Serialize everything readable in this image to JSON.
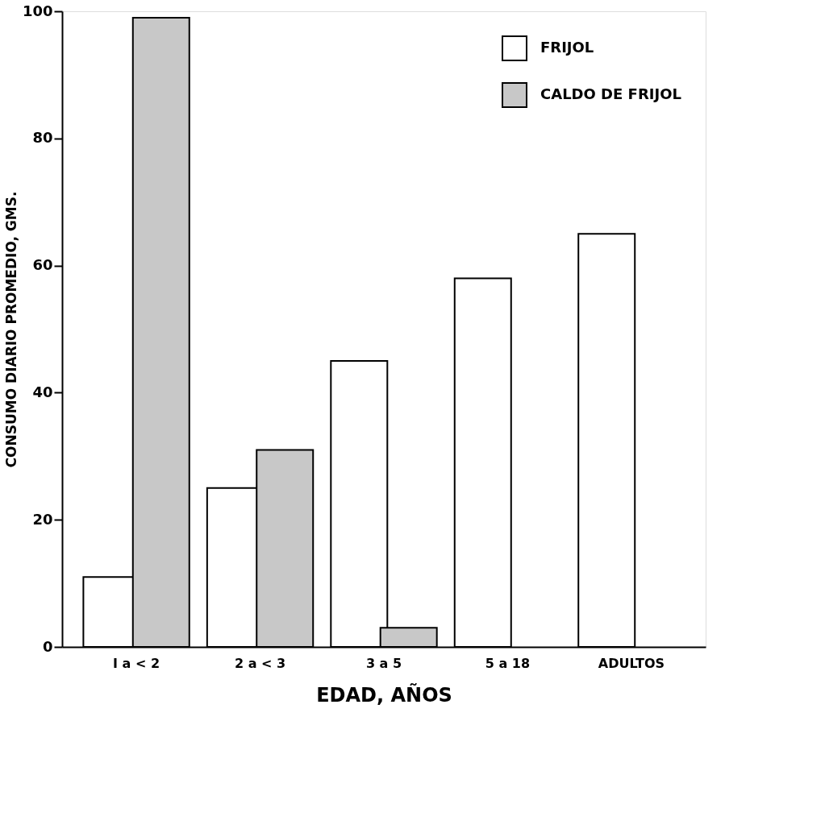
{
  "chart_data": {
    "type": "bar",
    "xlabel": "EDAD, AÑOS",
    "ylabel": "CONSUMO DIARIO PROMEDIO, GMS.",
    "categories": [
      "I a < 2",
      "2 a < 3",
      "3 a 5",
      "5 a 18",
      "ADULTOS"
    ],
    "series": [
      {
        "name": "FRIJOL",
        "color": "#ffffff",
        "values": [
          11,
          25,
          45,
          58,
          65
        ]
      },
      {
        "name": "CALDO DE FRIJOL",
        "color": "#c8c8c8",
        "values": [
          99,
          31,
          3,
          null,
          null
        ]
      }
    ],
    "ylim": [
      0,
      100
    ],
    "yticks": [
      0,
      20,
      40,
      60,
      80,
      100
    ],
    "grid": false,
    "legend": "top right"
  }
}
